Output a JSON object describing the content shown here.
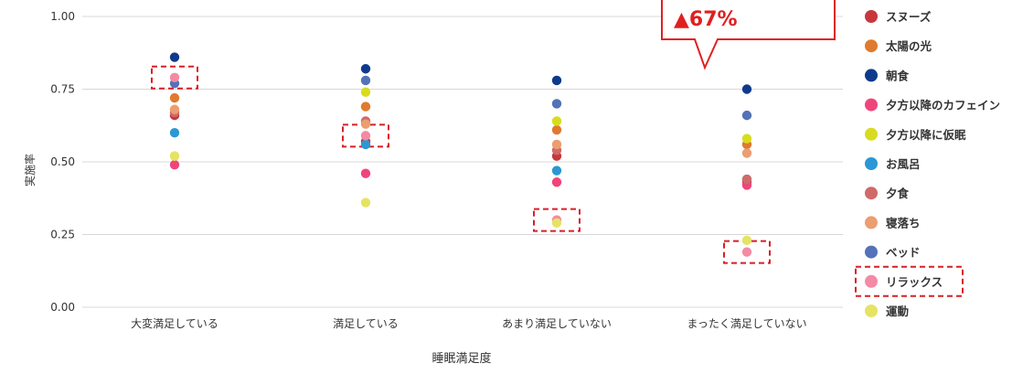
{
  "chart_data": {
    "type": "scatter",
    "title": "",
    "xlabel": "睡眠満足度",
    "ylabel": "実施率",
    "ylim": [
      0,
      1
    ],
    "yticks": [
      "0.00",
      "0.25",
      "0.50",
      "0.75",
      "1.00"
    ],
    "categories": [
      "大変満足している",
      "満足している",
      "あまり満足していない",
      "まったく満足していない"
    ],
    "grid": true,
    "legend_position": "right",
    "series": [
      {
        "name": "スヌーズ",
        "color": "#c8373c",
        "values": [
          0.66,
          0.57,
          0.52,
          0.43
        ]
      },
      {
        "name": "太陽の光",
        "color": "#e07a2e",
        "values": [
          0.72,
          0.69,
          0.61,
          0.56
        ]
      },
      {
        "name": "朝食",
        "color": "#0f3a8c",
        "values": [
          0.86,
          0.82,
          0.78,
          0.75
        ]
      },
      {
        "name": "夕方以降のカフェイン",
        "color": "#f0457a",
        "values": [
          0.49,
          0.46,
          0.43,
          0.42
        ]
      },
      {
        "name": "夕方以降に仮眠",
        "color": "#d8dc1e",
        "values": [
          0.52,
          0.74,
          0.64,
          0.58
        ]
      },
      {
        "name": "お風呂",
        "color": "#2b97d4",
        "values": [
          0.6,
          0.56,
          0.47,
          0.44
        ]
      },
      {
        "name": "夕食",
        "color": "#d06a6a",
        "values": [
          0.67,
          0.64,
          0.54,
          0.44
        ]
      },
      {
        "name": "寝落ち",
        "color": "#eb9e70",
        "values": [
          0.68,
          0.63,
          0.56,
          0.53
        ]
      },
      {
        "name": "ベッド",
        "color": "#5472b8",
        "values": [
          0.77,
          0.78,
          0.7,
          0.66
        ]
      },
      {
        "name": "リラックス",
        "color": "#f48aa4",
        "values": [
          0.79,
          0.59,
          0.3,
          0.19
        ]
      },
      {
        "name": "運動",
        "color": "#e6e363",
        "values": [
          0.52,
          0.36,
          0.29,
          0.23
        ]
      }
    ],
    "highlight_series": "リラックス",
    "callout_text": "▲67%",
    "colors": {
      "callout": "#e02020",
      "highlight_box": "#d81f26",
      "grid": "#d8d8d8",
      "text": "#333333"
    }
  }
}
